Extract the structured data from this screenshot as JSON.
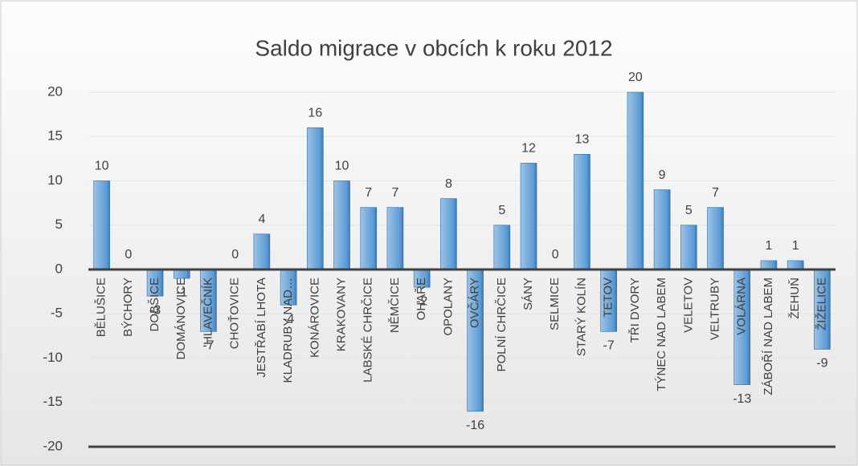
{
  "chart_data": {
    "type": "bar",
    "title": "Saldo migrace v obcích k roku 2012",
    "categories": [
      "BĚLUŠICE",
      "BÝCHORY",
      "DOBŠICE",
      "DOMÁNOVICE",
      "HLAVEČNÍK",
      "CHOŤOVICE",
      "JESTŘABÍ LHOTA",
      "KLADRUBY NAD…",
      "KONÁROVICE",
      "KRAKOVANY",
      "LABSKÉ CHRČICE",
      "NĚMČICE",
      "OHAŘE",
      "OPOLANY",
      "OVČÁRY",
      "POLNÍ CHRČICE",
      "SÁNY",
      "SELMICE",
      "STARÝ KOLÍN",
      "TETOV",
      "TŘI DVORY",
      "TÝNEC NAD LABEM",
      "VELETOV",
      "VELTRUBY",
      "VOLÁRNA",
      "ZÁBOŘÍ NAD LABEM",
      "ŽEHUŇ",
      "ŽIŽELICE"
    ],
    "values": [
      10,
      0,
      -3,
      -1,
      -7,
      0,
      4,
      -4,
      16,
      10,
      7,
      7,
      -2,
      8,
      -16,
      5,
      12,
      0,
      13,
      -7,
      20,
      9,
      5,
      7,
      -13,
      1,
      1,
      -9
    ],
    "color": "#5b9bd5",
    "ylim": [
      -20,
      20
    ],
    "yticks": [
      -20,
      -15,
      -10,
      -5,
      0,
      5,
      10,
      15,
      20
    ],
    "grid": true
  }
}
